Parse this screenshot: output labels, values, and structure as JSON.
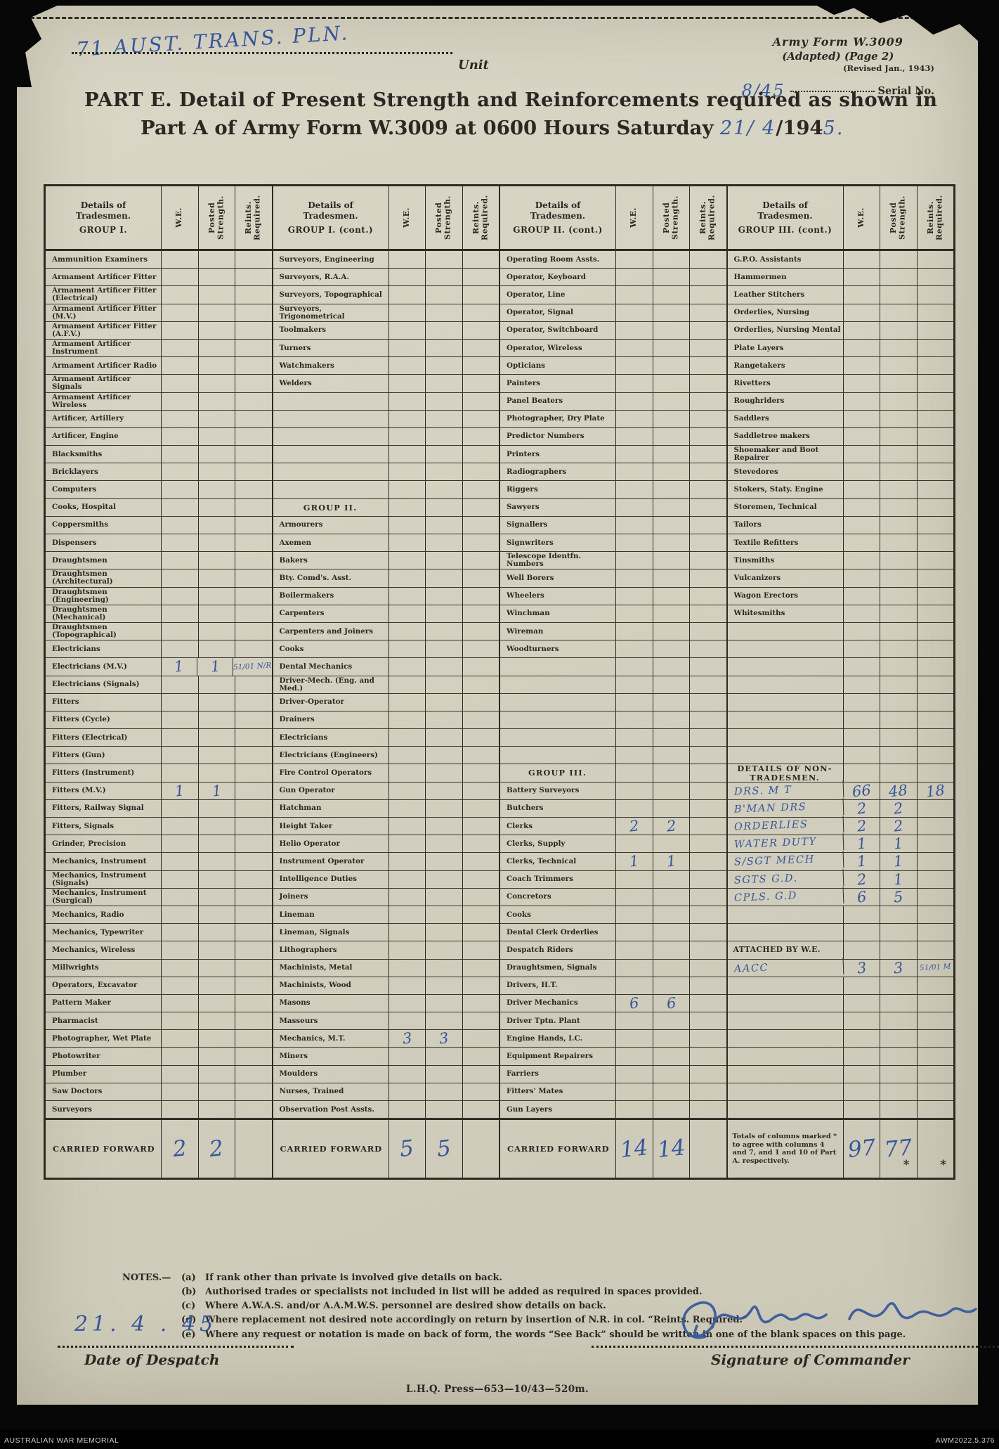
{
  "page": {
    "unit_name_hw": "71 AUST. TRANS. PLN.",
    "unit_label": "Unit",
    "form_id_line1": "Army Form W.3009",
    "form_id_line2": "(Adapted)  (Page 2)",
    "form_id_line3": "(Revised Jan., 1943)",
    "serial_hw": "8/45",
    "serial_label": "Serial No.",
    "title_line1": "PART E.  Detail of Present Strength and Reinforcements required as shown in",
    "title_line2_printed": "Part A of Army Form W.3009 at 0600 Hours Saturday ",
    "title_date_hw1": "21/ 4",
    "title_date_printed": "/194",
    "title_date_hw2": "5."
  },
  "table": {
    "vertical_headers": [
      "W.E.",
      "Posted Strength.",
      "Reints. Required."
    ],
    "blocks": [
      {
        "header": [
          "Details of",
          "Tradesmen.",
          "GROUP I."
        ],
        "rows": [
          {
            "t": "i",
            "l": "Ammunition Examiners"
          },
          {
            "t": "i",
            "l": "Armament Artificer Fitter"
          },
          {
            "t": "i",
            "l": "Armament Artificer Fitter (Electrical)"
          },
          {
            "t": "i",
            "l": "Armament Artificer Fitter (M.V.)"
          },
          {
            "t": "i",
            "l": "Armament Artificer Fitter (A.F.V.)"
          },
          {
            "t": "i",
            "l": "Armament Artificer Instrument"
          },
          {
            "t": "i",
            "l": "Armament Artificer Radio"
          },
          {
            "t": "i",
            "l": "Armament Artificer Signals"
          },
          {
            "t": "i",
            "l": "Armament Artificer Wireless"
          },
          {
            "t": "i",
            "l": "Artificer, Artillery"
          },
          {
            "t": "i",
            "l": "Artificer, Engine"
          },
          {
            "t": "i",
            "l": "Blacksmiths"
          },
          {
            "t": "i",
            "l": "Bricklayers"
          },
          {
            "t": "i",
            "l": "Computers"
          },
          {
            "t": "i",
            "l": "Cooks, Hospital"
          },
          {
            "t": "i",
            "l": "Coppersmiths"
          },
          {
            "t": "i",
            "l": "Dispensers"
          },
          {
            "t": "i",
            "l": "Draughtsmen"
          },
          {
            "t": "i",
            "l": "Draughtsmen (Architectural)"
          },
          {
            "t": "i",
            "l": "Draughtsmen (Engineering)"
          },
          {
            "t": "i",
            "l": "Draughtsmen (Mechanical)"
          },
          {
            "t": "i",
            "l": "Draughtsmen (Topographical)"
          },
          {
            "t": "i",
            "l": "Electricians"
          },
          {
            "t": "i",
            "l": "Electricians (M.V.)",
            "we": "1",
            "p": "1",
            "r": "51/01 N/R"
          },
          {
            "t": "i",
            "l": "Electricians (Signals)"
          },
          {
            "t": "i",
            "l": "Fitters"
          },
          {
            "t": "i",
            "l": "Fitters (Cycle)"
          },
          {
            "t": "i",
            "l": "Fitters (Electrical)"
          },
          {
            "t": "i",
            "l": "Fitters (Gun)"
          },
          {
            "t": "i",
            "l": "Fitters (Instrument)"
          },
          {
            "t": "i",
            "l": "Fitters (M.V.)",
            "we": "1",
            "p": "1"
          },
          {
            "t": "i",
            "l": "Fitters, Railway Signal"
          },
          {
            "t": "i",
            "l": "Fitters, Signals"
          },
          {
            "t": "i",
            "l": "Grinder, Precision"
          },
          {
            "t": "i",
            "l": "Mechanics, Instrument"
          },
          {
            "t": "i",
            "l": "Mechanics, Instrument (Signals)"
          },
          {
            "t": "i",
            "l": "Mechanics, Instrument (Surgical)"
          },
          {
            "t": "i",
            "l": "Mechanics, Radio"
          },
          {
            "t": "i",
            "l": "Mechanics, Typewriter"
          },
          {
            "t": "i",
            "l": "Mechanics, Wireless"
          },
          {
            "t": "i",
            "l": "Millwrights"
          },
          {
            "t": "i",
            "l": "Operators, Excavator"
          },
          {
            "t": "i",
            "l": "Pattern  Maker"
          },
          {
            "t": "i",
            "l": "Pharmacist"
          },
          {
            "t": "i",
            "l": "Photographer, Wet Plate"
          },
          {
            "t": "i",
            "l": "Photowriter"
          },
          {
            "t": "i",
            "l": "Plumber"
          },
          {
            "t": "i",
            "l": "Saw Doctors"
          },
          {
            "t": "i",
            "l": "Surveyors"
          }
        ],
        "footer": {
          "label": "CARRIED FORWARD",
          "we": "2",
          "p": "2"
        }
      },
      {
        "header": [
          "Details of",
          "Tradesmen.",
          "GROUP I. (cont.)"
        ],
        "rows": [
          {
            "t": "i",
            "l": "Surveyors, Engineering"
          },
          {
            "t": "i",
            "l": "Surveyors, R.A.A."
          },
          {
            "t": "i",
            "l": "Surveyors, Topographical"
          },
          {
            "t": "i",
            "l": "Surveyors, Trigonometrical"
          },
          {
            "t": "i",
            "l": "Toolmakers"
          },
          {
            "t": "i",
            "l": "Turners"
          },
          {
            "t": "i",
            "l": "Watchmakers"
          },
          {
            "t": "i",
            "l": "Welders"
          },
          {
            "t": "b"
          },
          {
            "t": "b"
          },
          {
            "t": "b"
          },
          {
            "t": "b"
          },
          {
            "t": "b"
          },
          {
            "t": "b"
          },
          {
            "t": "g",
            "l": "GROUP  II."
          },
          {
            "t": "i",
            "l": "Armourers"
          },
          {
            "t": "i",
            "l": "Axemen"
          },
          {
            "t": "i",
            "l": "Bakers"
          },
          {
            "t": "i",
            "l": "Bty. Comd's. Asst."
          },
          {
            "t": "i",
            "l": "Boilermakers"
          },
          {
            "t": "i",
            "l": "Carpenters"
          },
          {
            "t": "i",
            "l": "Carpenters and Joiners"
          },
          {
            "t": "i",
            "l": "Cooks"
          },
          {
            "t": "i",
            "l": "Dental Mechanics"
          },
          {
            "t": "i",
            "l": "Driver-Mech. (Eng. and Med.)"
          },
          {
            "t": "i",
            "l": "Driver-Operator"
          },
          {
            "t": "i",
            "l": "Drainers"
          },
          {
            "t": "i",
            "l": "Electricians"
          },
          {
            "t": "i",
            "l": "Electricians (Engineers)"
          },
          {
            "t": "i",
            "l": "Fire Control Operators"
          },
          {
            "t": "i",
            "l": "Gun Operator"
          },
          {
            "t": "i",
            "l": "Hatchman"
          },
          {
            "t": "i",
            "l": "Height Taker"
          },
          {
            "t": "i",
            "l": "Helio Operator"
          },
          {
            "t": "i",
            "l": "Instrument Operator"
          },
          {
            "t": "i",
            "l": "Intelligence Duties"
          },
          {
            "t": "i",
            "l": "Joiners"
          },
          {
            "t": "i",
            "l": "Lineman"
          },
          {
            "t": "i",
            "l": "Lineman, Signals"
          },
          {
            "t": "i",
            "l": "Lithographers"
          },
          {
            "t": "i",
            "l": "Machinists, Metal"
          },
          {
            "t": "i",
            "l": "Machinists, Wood"
          },
          {
            "t": "i",
            "l": "Masons"
          },
          {
            "t": "i",
            "l": "Masseurs"
          },
          {
            "t": "i",
            "l": "Mechanics, M.T.",
            "we": "3",
            "p": "3"
          },
          {
            "t": "i",
            "l": "Miners"
          },
          {
            "t": "i",
            "l": "Moulders"
          },
          {
            "t": "i",
            "l": "Nurses, Trained"
          },
          {
            "t": "i",
            "l": "Observation Post Assts."
          }
        ],
        "footer": {
          "label": "CARRIED FORWARD",
          "we": "5",
          "p": "5"
        }
      },
      {
        "header": [
          "Details of",
          "Tradesmen.",
          "GROUP II. (cont.)"
        ],
        "rows": [
          {
            "t": "i",
            "l": "Operating Room Assts."
          },
          {
            "t": "i",
            "l": "Operator, Keyboard"
          },
          {
            "t": "i",
            "l": "Operator, Line"
          },
          {
            "t": "i",
            "l": "Operator, Signal"
          },
          {
            "t": "i",
            "l": "Operator, Switchboard"
          },
          {
            "t": "i",
            "l": "Operator, Wireless"
          },
          {
            "t": "i",
            "l": "Opticians"
          },
          {
            "t": "i",
            "l": "Painters"
          },
          {
            "t": "i",
            "l": "Panel Beaters"
          },
          {
            "t": "i",
            "l": "Photographer, Dry Plate"
          },
          {
            "t": "i",
            "l": "Predictor Numbers"
          },
          {
            "t": "i",
            "l": "Printers"
          },
          {
            "t": "i",
            "l": "Radiographers"
          },
          {
            "t": "i",
            "l": "Riggers"
          },
          {
            "t": "i",
            "l": "Sawyers"
          },
          {
            "t": "i",
            "l": "Signallers"
          },
          {
            "t": "i",
            "l": "Signwriters"
          },
          {
            "t": "i",
            "l": "Telescope Identfn. Numbers"
          },
          {
            "t": "i",
            "l": "Well Borers"
          },
          {
            "t": "i",
            "l": "Wheelers"
          },
          {
            "t": "i",
            "l": "Winchman"
          },
          {
            "t": "i",
            "l": "Wireman"
          },
          {
            "t": "i",
            "l": "Woodturners"
          },
          {
            "t": "b"
          },
          {
            "t": "b"
          },
          {
            "t": "b"
          },
          {
            "t": "b"
          },
          {
            "t": "b"
          },
          {
            "t": "b"
          },
          {
            "t": "g",
            "l": "GROUP  III."
          },
          {
            "t": "i",
            "l": "Battery Surveyors"
          },
          {
            "t": "i",
            "l": "Butchers"
          },
          {
            "t": "i",
            "l": "Clerks",
            "we": "2",
            "p": "2"
          },
          {
            "t": "i",
            "l": "Clerks, Supply"
          },
          {
            "t": "i",
            "l": "Clerks, Technical",
            "we": "1",
            "p": "1"
          },
          {
            "t": "i",
            "l": "Coach Trimmers"
          },
          {
            "t": "i",
            "l": "Concretors"
          },
          {
            "t": "i",
            "l": "Cooks"
          },
          {
            "t": "i",
            "l": "Dental Clerk Orderlies"
          },
          {
            "t": "i",
            "l": "Despatch Riders"
          },
          {
            "t": "i",
            "l": "Draughtsmen, Signals"
          },
          {
            "t": "i",
            "l": "Drivers, H.T."
          },
          {
            "t": "i",
            "l": "Driver Mechanics",
            "we": "6",
            "p": "6"
          },
          {
            "t": "i",
            "l": "Driver Tptn. Plant"
          },
          {
            "t": "i",
            "l": "Engine Hands, I.C."
          },
          {
            "t": "i",
            "l": "Equipment Repairers"
          },
          {
            "t": "i",
            "l": "Farriers"
          },
          {
            "t": "i",
            "l": "Fitters' Mates"
          },
          {
            "t": "i",
            "l": "Gun Layers"
          }
        ],
        "footer": {
          "label": "CARRIED FORWARD",
          "we": "14",
          "p": "14"
        }
      },
      {
        "header": [
          "Details of",
          "Tradesmen.",
          "GROUP III. (cont.)"
        ],
        "rows": [
          {
            "t": "i",
            "l": "G.P.O. Assistants"
          },
          {
            "t": "i",
            "l": "Hammermen"
          },
          {
            "t": "i",
            "l": "Leather Stitchers"
          },
          {
            "t": "i",
            "l": "Orderlies, Nursing"
          },
          {
            "t": "i",
            "l": "Orderlies, Nursing Mental"
          },
          {
            "t": "i",
            "l": "Plate Layers"
          },
          {
            "t": "i",
            "l": "Rangetakers"
          },
          {
            "t": "i",
            "l": "Rivetters"
          },
          {
            "t": "i",
            "l": "Roughriders"
          },
          {
            "t": "i",
            "l": "Saddlers"
          },
          {
            "t": "i",
            "l": "Saddletree makers"
          },
          {
            "t": "i",
            "l": "Shoemaker and Boot Repairer"
          },
          {
            "t": "i",
            "l": "Stevedores"
          },
          {
            "t": "i",
            "l": "Stokers, Staty. Engine"
          },
          {
            "t": "i",
            "l": "Storemen, Technical"
          },
          {
            "t": "i",
            "l": "Tailors"
          },
          {
            "t": "i",
            "l": "Textile Refitters"
          },
          {
            "t": "i",
            "l": "Tinsmiths"
          },
          {
            "t": "i",
            "l": "Vulcanizers"
          },
          {
            "t": "i",
            "l": "Wagon Erectors"
          },
          {
            "t": "i",
            "l": "Whitesmiths"
          },
          {
            "t": "b"
          },
          {
            "t": "b"
          },
          {
            "t": "b"
          },
          {
            "t": "b"
          },
          {
            "t": "b"
          },
          {
            "t": "b"
          },
          {
            "t": "b"
          },
          {
            "t": "b"
          },
          {
            "t": "g",
            "l": "DETAILS OF NON-TRADESMEN."
          },
          {
            "t": "h",
            "l": "DRS. M T",
            "we": "66",
            "p": "48",
            "r": "18"
          },
          {
            "t": "h",
            "l": "B'MAN  DRS",
            "we": "2",
            "p": "2"
          },
          {
            "t": "h",
            "l": "ORDERLIES",
            "we": "2",
            "p": "2"
          },
          {
            "t": "h",
            "l": "WATER DUTY",
            "we": "1",
            "p": "1"
          },
          {
            "t": "h",
            "l": "S/SGT MECH",
            "we": "1",
            "p": "1"
          },
          {
            "t": "h",
            "l": "SGTS G.D.",
            "we": "2",
            "p": "1"
          },
          {
            "t": "h",
            "l": "CPLS. G.D",
            "we": "6",
            "p": "5"
          },
          {
            "t": "b"
          },
          {
            "t": "b"
          },
          {
            "t": "g",
            "l": "ATTACHED BY W.E.",
            "align": "left"
          },
          {
            "t": "h",
            "l": "AACC",
            "we": "3",
            "p": "3",
            "r": "51/01 M"
          },
          {
            "t": "b"
          },
          {
            "t": "b"
          },
          {
            "t": "b"
          },
          {
            "t": "b"
          },
          {
            "t": "b"
          },
          {
            "t": "b"
          },
          {
            "t": "b"
          },
          {
            "t": "b"
          }
        ],
        "footer": {
          "label": "Totals of columns marked  *  to agree with columns 4 and 7, and 1 and 10 of Part A.  respectively.",
          "small": true,
          "we": "97",
          "p": "77",
          "p_mark": "*",
          "r_mark": "*"
        }
      }
    ]
  },
  "notes": {
    "prefix": "NOTES.—",
    "items": [
      {
        "tag": "(a)",
        "text": "If rank other than private is involved give details on back."
      },
      {
        "tag": "(b)",
        "text": "Authorised trades or specialists not included in list will be added as required in spaces provided."
      },
      {
        "tag": "(c)",
        "text": "Where A.W.A.S. and/or A.A.M.W.S. personnel are desired show details on back."
      },
      {
        "tag": "(d)",
        "text": "Where replacement not desired note accordingly on return by insertion of N.R. in col. “Reints. Required.”"
      },
      {
        "tag": "(e)",
        "text": "Where any request or notation is made on back of form, the words “See Back” should be written in one of the blank spaces on this page."
      }
    ]
  },
  "signoff": {
    "despatch_date_hw": "21.  4 . 45",
    "despatch_label": "Date of Despatch",
    "signature_label": "Signature of Commander"
  },
  "press_line": "L.H.Q.  Press—653—10/43—520m.",
  "archive": {
    "left": "AUSTRALIAN WAR MEMORIAL",
    "right": "AWM2022.5.376"
  },
  "colors": {
    "paper": "#d6d2c1",
    "ink": "#2b2722",
    "handwriting": "#36579b",
    "background": "#070707"
  }
}
